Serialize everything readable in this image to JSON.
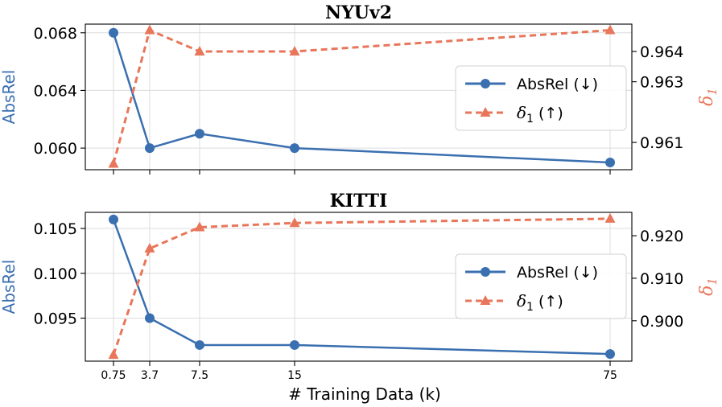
{
  "chart_data": [
    {
      "type": "line",
      "title": "NYUv2",
      "x": [
        0.75,
        3.7,
        7.5,
        15,
        75
      ],
      "x_tick_labels": [
        "0.75",
        "3.7",
        "7.5",
        "15",
        "75"
      ],
      "series": [
        {
          "name": "AbsRel (↓)",
          "axis": "left",
          "marker": "circle",
          "style": "solid",
          "color": "#3a6fb0",
          "values": [
            0.068,
            0.06,
            0.061,
            0.06,
            0.059
          ]
        },
        {
          "name": "δ1 (↑)",
          "axis": "right",
          "marker": "triangle",
          "style": "dashed",
          "color": "#e8765a",
          "values": [
            0.9603,
            0.9647,
            0.964,
            0.964,
            0.9647
          ]
        }
      ],
      "ylabel_left": "AbsRel",
      "ylabel_right": "δ1",
      "ylim_left": [
        0.0585,
        0.0686
      ],
      "ylim_right": [
        0.9601,
        0.9649
      ],
      "yticks_left": [
        0.06,
        0.064,
        0.068
      ],
      "ytick_labels_left": [
        "0.060",
        "0.064",
        "0.068"
      ],
      "yticks_right": [
        0.961,
        0.963,
        0.964
      ],
      "ytick_labels_right": [
        "0.961",
        "0.963",
        "0.964"
      ],
      "legend": {
        "placement": "center-right",
        "entries": [
          "AbsRel (↓)",
          "δ1 (↑)"
        ]
      },
      "grid": true
    },
    {
      "type": "line",
      "title": "KITTI",
      "x": [
        0.75,
        3.7,
        7.5,
        15,
        75
      ],
      "x_tick_labels": [
        "0.75",
        "3.7",
        "7.5",
        "15",
        "75"
      ],
      "series": [
        {
          "name": "AbsRel (↓)",
          "axis": "left",
          "marker": "circle",
          "style": "solid",
          "color": "#3a6fb0",
          "values": [
            0.106,
            0.095,
            0.092,
            0.092,
            0.091
          ]
        },
        {
          "name": "δ1 (↑)",
          "axis": "right",
          "marker": "triangle",
          "style": "dashed",
          "color": "#e8765a",
          "values": [
            0.892,
            0.917,
            0.922,
            0.923,
            0.924
          ]
        }
      ],
      "ylabel_left": "AbsRel",
      "ylabel_right": "δ1",
      "ylim_left": [
        0.0902,
        0.1068
      ],
      "ylim_right": [
        0.8905,
        0.9255
      ],
      "yticks_left": [
        0.095,
        0.1,
        0.105
      ],
      "ytick_labels_left": [
        "0.095",
        "0.100",
        "0.105"
      ],
      "yticks_right": [
        0.9,
        0.91,
        0.92
      ],
      "ytick_labels_right": [
        "0.900",
        "0.910",
        "0.920"
      ],
      "legend": {
        "placement": "center-right",
        "entries": [
          "AbsRel (↓)",
          "δ1 (↑)"
        ]
      },
      "grid": true
    }
  ],
  "shared": {
    "xlabel": "# Training Data (k)",
    "blue": "#3a6fb0",
    "orange": "#e8765a"
  }
}
